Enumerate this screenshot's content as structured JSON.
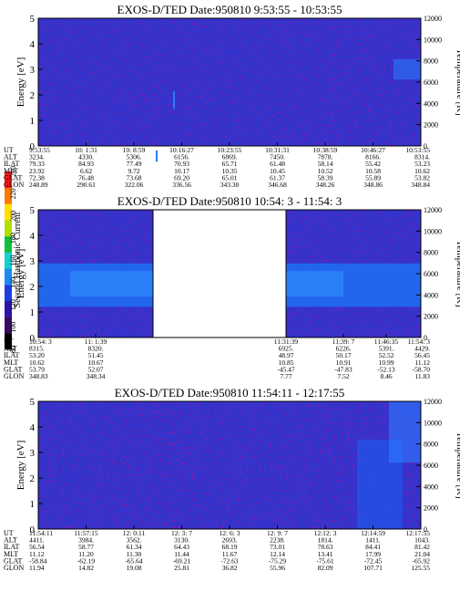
{
  "colorbar": {
    "label": "Second Harmonic Current",
    "ticks": [
      "80",
      "100",
      "120",
      "140",
      "160",
      "180",
      "200",
      "220",
      "240"
    ],
    "colors": [
      "#000000",
      "#3a0a5e",
      "#2b14a8",
      "#1d3ee0",
      "#1a8cf0",
      "#12d0d0",
      "#10c040",
      "#b0e000",
      "#ffe000",
      "#ff7a00",
      "#ff1a1a"
    ]
  },
  "row_labels": [
    "UT",
    "ALT",
    "ILAT",
    "MLT",
    "GLAT",
    "GLON"
  ],
  "chart_data": [
    {
      "type": "heatmap",
      "title": "EXOS-D/TED   Date:950810  9:53:55 - 10:53:55",
      "ylabel": "Energy [eV]",
      "y2label": "Temperature [K]",
      "ylim": [
        0,
        5
      ],
      "y2lim": [
        0,
        12000
      ],
      "yticks": [
        "0",
        "1",
        "2",
        "3",
        "4",
        "5"
      ],
      "y2ticks": [
        "0",
        "2000",
        "4000",
        "6000",
        "8000",
        "10000",
        "12000"
      ],
      "data_gap": null,
      "columns": [
        {
          "UT": "9:53:55",
          "ALT": "3234.",
          "ILAT": "79.33",
          "MLT": "23.92",
          "GLAT": "72.38",
          "GLON": "248.89"
        },
        {
          "UT": "10: 1:31",
          "ALT": "4330.",
          "ILAT": "84.93",
          "MLT": "6.62",
          "GLAT": "76.48",
          "GLON": "290.61"
        },
        {
          "UT": "10: 8:59",
          "ALT": "5306.",
          "ILAT": "77.49",
          "MLT": "9.72",
          "GLAT": "73.68",
          "GLON": "322.06"
        },
        {
          "UT": "10:16:27",
          "ALT": "6156.",
          "ILAT": "70.93",
          "MLT": "10.17",
          "GLAT": "69.20",
          "GLON": "336.56"
        },
        {
          "UT": "10:23:55",
          "ALT": "6869.",
          "ILAT": "65.71",
          "MLT": "10.35",
          "GLAT": "65.01",
          "GLON": "343.30"
        },
        {
          "UT": "10:31:31",
          "ALT": "7450.",
          "ILAT": "61.48",
          "MLT": "10.45",
          "GLAT": "61.37",
          "GLON": "346.68"
        },
        {
          "UT": "10:38:59",
          "ALT": "7878.",
          "ILAT": "58.14",
          "MLT": "10.52",
          "GLAT": "58.39",
          "GLON": "348.26"
        },
        {
          "UT": "10:46:27",
          "ALT": "8166.",
          "ILAT": "55.42",
          "MLT": "10.58",
          "GLAT": "55.89",
          "GLON": "348.86"
        },
        {
          "UT": "10:53:55",
          "ALT": "8314.",
          "ILAT": "53.23",
          "MLT": "10.62",
          "GLAT": "53.82",
          "GLON": "348.84"
        }
      ]
    },
    {
      "type": "heatmap",
      "title": "EXOS-D/TED   Date:950810  10:54: 3 - 11:54: 3",
      "ylabel": "Energy [eV]",
      "y2label": "Temperature [K]",
      "ylim": [
        0,
        5
      ],
      "y2lim": [
        0,
        12000
      ],
      "yticks": [
        "0",
        "1",
        "2",
        "3",
        "4",
        "5"
      ],
      "y2ticks": [
        "0",
        "2000",
        "4000",
        "6000",
        "8000",
        "10000",
        "12000"
      ],
      "data_gap": [
        "11:01:39",
        "11:31:39"
      ],
      "columns": [
        {
          "UT": "10:54: 3",
          "ALT": "8315.",
          "ILAT": "53.20",
          "MLT": "10.62",
          "GLAT": "53.79",
          "GLON": "348.83"
        },
        {
          "UT": "11: 1:39",
          "ALT": "8320.",
          "ILAT": "51.45",
          "MLT": "10.67",
          "GLAT": "52.07",
          "GLON": "348.34"
        },
        {
          "UT": "11:31:39",
          "ALT": "6925.",
          "ILAT": "48.97",
          "MLT": "10.85",
          "GLAT": "-45.47",
          "GLON": "7.77"
        },
        {
          "UT": "11:39: 7",
          "ALT": "6226.",
          "ILAT": "50.17",
          "MLT": "10.91",
          "GLAT": "-47.83",
          "GLON": "7.52"
        },
        {
          "UT": "11:46:35",
          "ALT": "5391.",
          "ILAT": "52.52",
          "MLT": "10.99",
          "GLAT": "-52.13",
          "GLON": "8.46"
        },
        {
          "UT": "11:54: 3",
          "ALT": "4429.",
          "ILAT": "56.45",
          "MLT": "11.12",
          "GLAT": "-58.70",
          "GLON": "11.83"
        }
      ]
    },
    {
      "type": "heatmap",
      "title": "EXOS-D/TED   Date:950810  11:54:11 - 12:17:55",
      "ylabel": "Energy [eV]",
      "y2label": "Temperature [K]",
      "ylim": [
        0,
        5
      ],
      "y2lim": [
        0,
        12000
      ],
      "yticks": [
        "0",
        "1",
        "2",
        "3",
        "4",
        "5"
      ],
      "y2ticks": [
        "0",
        "2000",
        "4000",
        "6000",
        "8000",
        "10000",
        "12000"
      ],
      "data_gap": null,
      "columns": [
        {
          "UT": "11:54:11",
          "ALT": "4411.",
          "ILAT": "56.54",
          "MLT": "11.12",
          "GLAT": "-58.84",
          "GLON": "11.94"
        },
        {
          "UT": "11:57:15",
          "ALT": "3984.",
          "ILAT": "58.77",
          "MLT": "11.20",
          "GLAT": "-62.19",
          "GLON": "14.82"
        },
        {
          "UT": "12: 0:11",
          "ALT": "3562.",
          "ILAT": "61.34",
          "MLT": "11.30",
          "GLAT": "-65.64",
          "GLON": "19.08"
        },
        {
          "UT": "12: 3: 7",
          "ALT": "3130.",
          "ILAT": "64.43",
          "MLT": "11.44",
          "GLAT": "-69.21",
          "GLON": "25.81"
        },
        {
          "UT": "12: 6: 3",
          "ALT": "2693.",
          "ILAT": "68.19",
          "MLT": "11.67",
          "GLAT": "-72.63",
          "GLON": "36.82"
        },
        {
          "UT": "12: 9: 7",
          "ALT": "2238.",
          "ILAT": "73.01",
          "MLT": "12.14",
          "GLAT": "-75.29",
          "GLON": "55.96"
        },
        {
          "UT": "12:12: 3",
          "ALT": "1814.",
          "ILAT": "78.63",
          "MLT": "13.41",
          "GLAT": "-75.61",
          "GLON": "82.09"
        },
        {
          "UT": "12:14:59",
          "ALT": "1411.",
          "ILAT": "84.41",
          "MLT": "17.99",
          "GLAT": "-72.45",
          "GLON": "107.71"
        },
        {
          "UT": "12:17:55",
          "ALT": "1043.",
          "ILAT": "81.42",
          "MLT": "21.04",
          "GLAT": "-65.92",
          "GLON": "125.55"
        }
      ]
    }
  ]
}
